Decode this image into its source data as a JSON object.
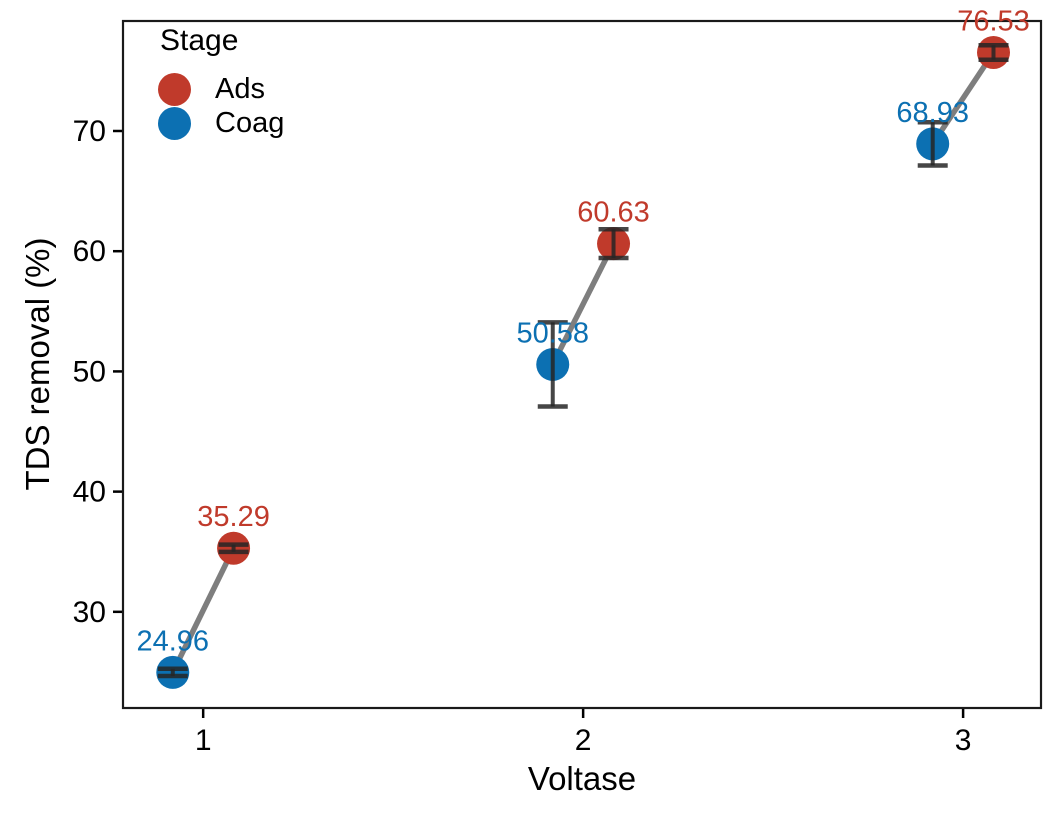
{
  "figure": {
    "background": "#FFFFFF",
    "panel_border_color": "#1A1A1A",
    "text_color": "#000000"
  },
  "chart_data": {
    "type": "scatter",
    "title": "",
    "xlabel": "Voltase",
    "ylabel": "TDS removal (%)",
    "x_ticks": [
      "1",
      "2",
      "3"
    ],
    "x_tick_values": [
      1,
      2,
      3
    ],
    "y_ticks": [
      "30",
      "40",
      "50",
      "60",
      "70"
    ],
    "y_tick_values": [
      30,
      40,
      50,
      60,
      70
    ],
    "xlim": [
      0.789,
      3.205
    ],
    "ylim": [
      22.0,
      79.15
    ],
    "grid": false,
    "legend": {
      "title": "Stage",
      "position": "inside-top-left",
      "entries": [
        {
          "label": "Ads",
          "color": "#C03A2B"
        },
        {
          "label": "Coag",
          "color": "#0C70B2"
        }
      ]
    },
    "series": [
      {
        "name": "Ads",
        "color": "#C03A2B",
        "points": [
          {
            "x": 1.08,
            "y": 35.29,
            "label": "35.29",
            "err": 0.3
          },
          {
            "x": 2.08,
            "y": 60.63,
            "label": "60.63",
            "err": 1.2
          },
          {
            "x": 3.08,
            "y": 76.53,
            "label": "76.53",
            "err": 0.6
          }
        ]
      },
      {
        "name": "Coag",
        "color": "#0C70B2",
        "points": [
          {
            "x": 0.92,
            "y": 24.96,
            "label": "24.96",
            "err": 0.3
          },
          {
            "x": 1.92,
            "y": 50.58,
            "label": "50.58",
            "err": 3.5
          },
          {
            "x": 2.92,
            "y": 68.93,
            "label": "68.93",
            "err": 1.8
          }
        ]
      }
    ],
    "connectors": [
      {
        "from": {
          "x": 0.92,
          "y": 24.96
        },
        "to": {
          "x": 1.08,
          "y": 35.29
        }
      },
      {
        "from": {
          "x": 1.92,
          "y": 50.58
        },
        "to": {
          "x": 2.08,
          "y": 60.63
        }
      },
      {
        "from": {
          "x": 2.92,
          "y": 68.93
        },
        "to": {
          "x": 3.08,
          "y": 76.53
        }
      }
    ],
    "connector_color": "#7E7E7E",
    "error_bar_color": "#262626"
  }
}
